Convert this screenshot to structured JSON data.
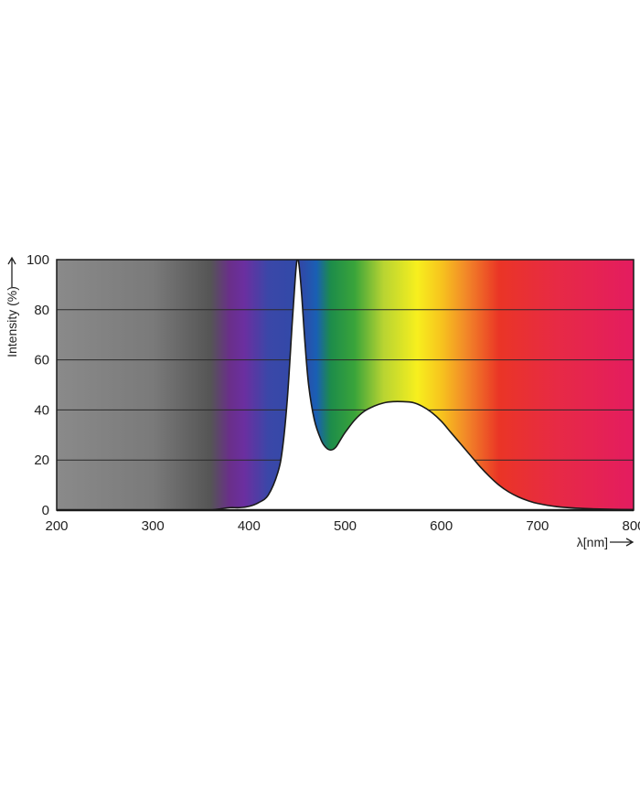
{
  "chart_data": {
    "type": "area",
    "xlabel": "λ[nm]",
    "ylabel": "Intensity (%)",
    "xlim": [
      200,
      800
    ],
    "ylim": [
      0,
      100
    ],
    "xticks": [
      200,
      300,
      400,
      500,
      600,
      700,
      800
    ],
    "yticks": [
      0,
      20,
      40,
      60,
      80,
      100
    ],
    "grid": true,
    "background": "visible spectrum colour band behind the curve",
    "spectrum_colors": [
      {
        "nm": 200,
        "color": "#8a8a8a"
      },
      {
        "nm": 300,
        "color": "#7a7a7a"
      },
      {
        "nm": 360,
        "color": "#555555"
      },
      {
        "nm": 380,
        "color": "#6a2f8a"
      },
      {
        "nm": 395,
        "color": "#6b2fa0"
      },
      {
        "nm": 420,
        "color": "#3b47a8"
      },
      {
        "nm": 455,
        "color": "#2f4aa8"
      },
      {
        "nm": 470,
        "color": "#1a5fb4"
      },
      {
        "nm": 485,
        "color": "#1d8c4a"
      },
      {
        "nm": 510,
        "color": "#3aa43a"
      },
      {
        "nm": 540,
        "color": "#b8d432"
      },
      {
        "nm": 575,
        "color": "#f7ef1e"
      },
      {
        "nm": 600,
        "color": "#f7c41e"
      },
      {
        "nm": 625,
        "color": "#f28a28"
      },
      {
        "nm": 660,
        "color": "#ea3526"
      },
      {
        "nm": 720,
        "color": "#e72a45"
      },
      {
        "nm": 800,
        "color": "#e41c60"
      }
    ],
    "fill_color": "#ffffff",
    "line_color": "#1a1a1a",
    "series": [
      {
        "x": [
          360,
          370,
          380,
          390,
          400,
          410,
          420,
          430,
          435,
          440,
          445,
          448,
          450,
          452,
          455,
          458,
          462,
          468,
          475,
          480,
          485,
          490,
          495,
          500,
          510,
          520,
          530,
          540,
          550,
          560,
          570,
          580,
          590,
          600,
          610,
          620,
          630,
          640,
          650,
          660,
          670,
          680,
          690,
          700,
          720,
          740,
          760,
          780,
          800
        ],
        "y": [
          0,
          0.5,
          1,
          1,
          1.5,
          3,
          6,
          15,
          25,
          45,
          75,
          92,
          100,
          98,
          85,
          68,
          50,
          36,
          28,
          25,
          24,
          25,
          28,
          31,
          36,
          39.5,
          41.5,
          42.8,
          43.3,
          43.3,
          43,
          41.5,
          39,
          35.5,
          31,
          26.5,
          22,
          17.5,
          13.5,
          10,
          7.3,
          5.3,
          3.8,
          2.7,
          1.4,
          0.8,
          0.5,
          0.3,
          0.2
        ]
      }
    ]
  }
}
